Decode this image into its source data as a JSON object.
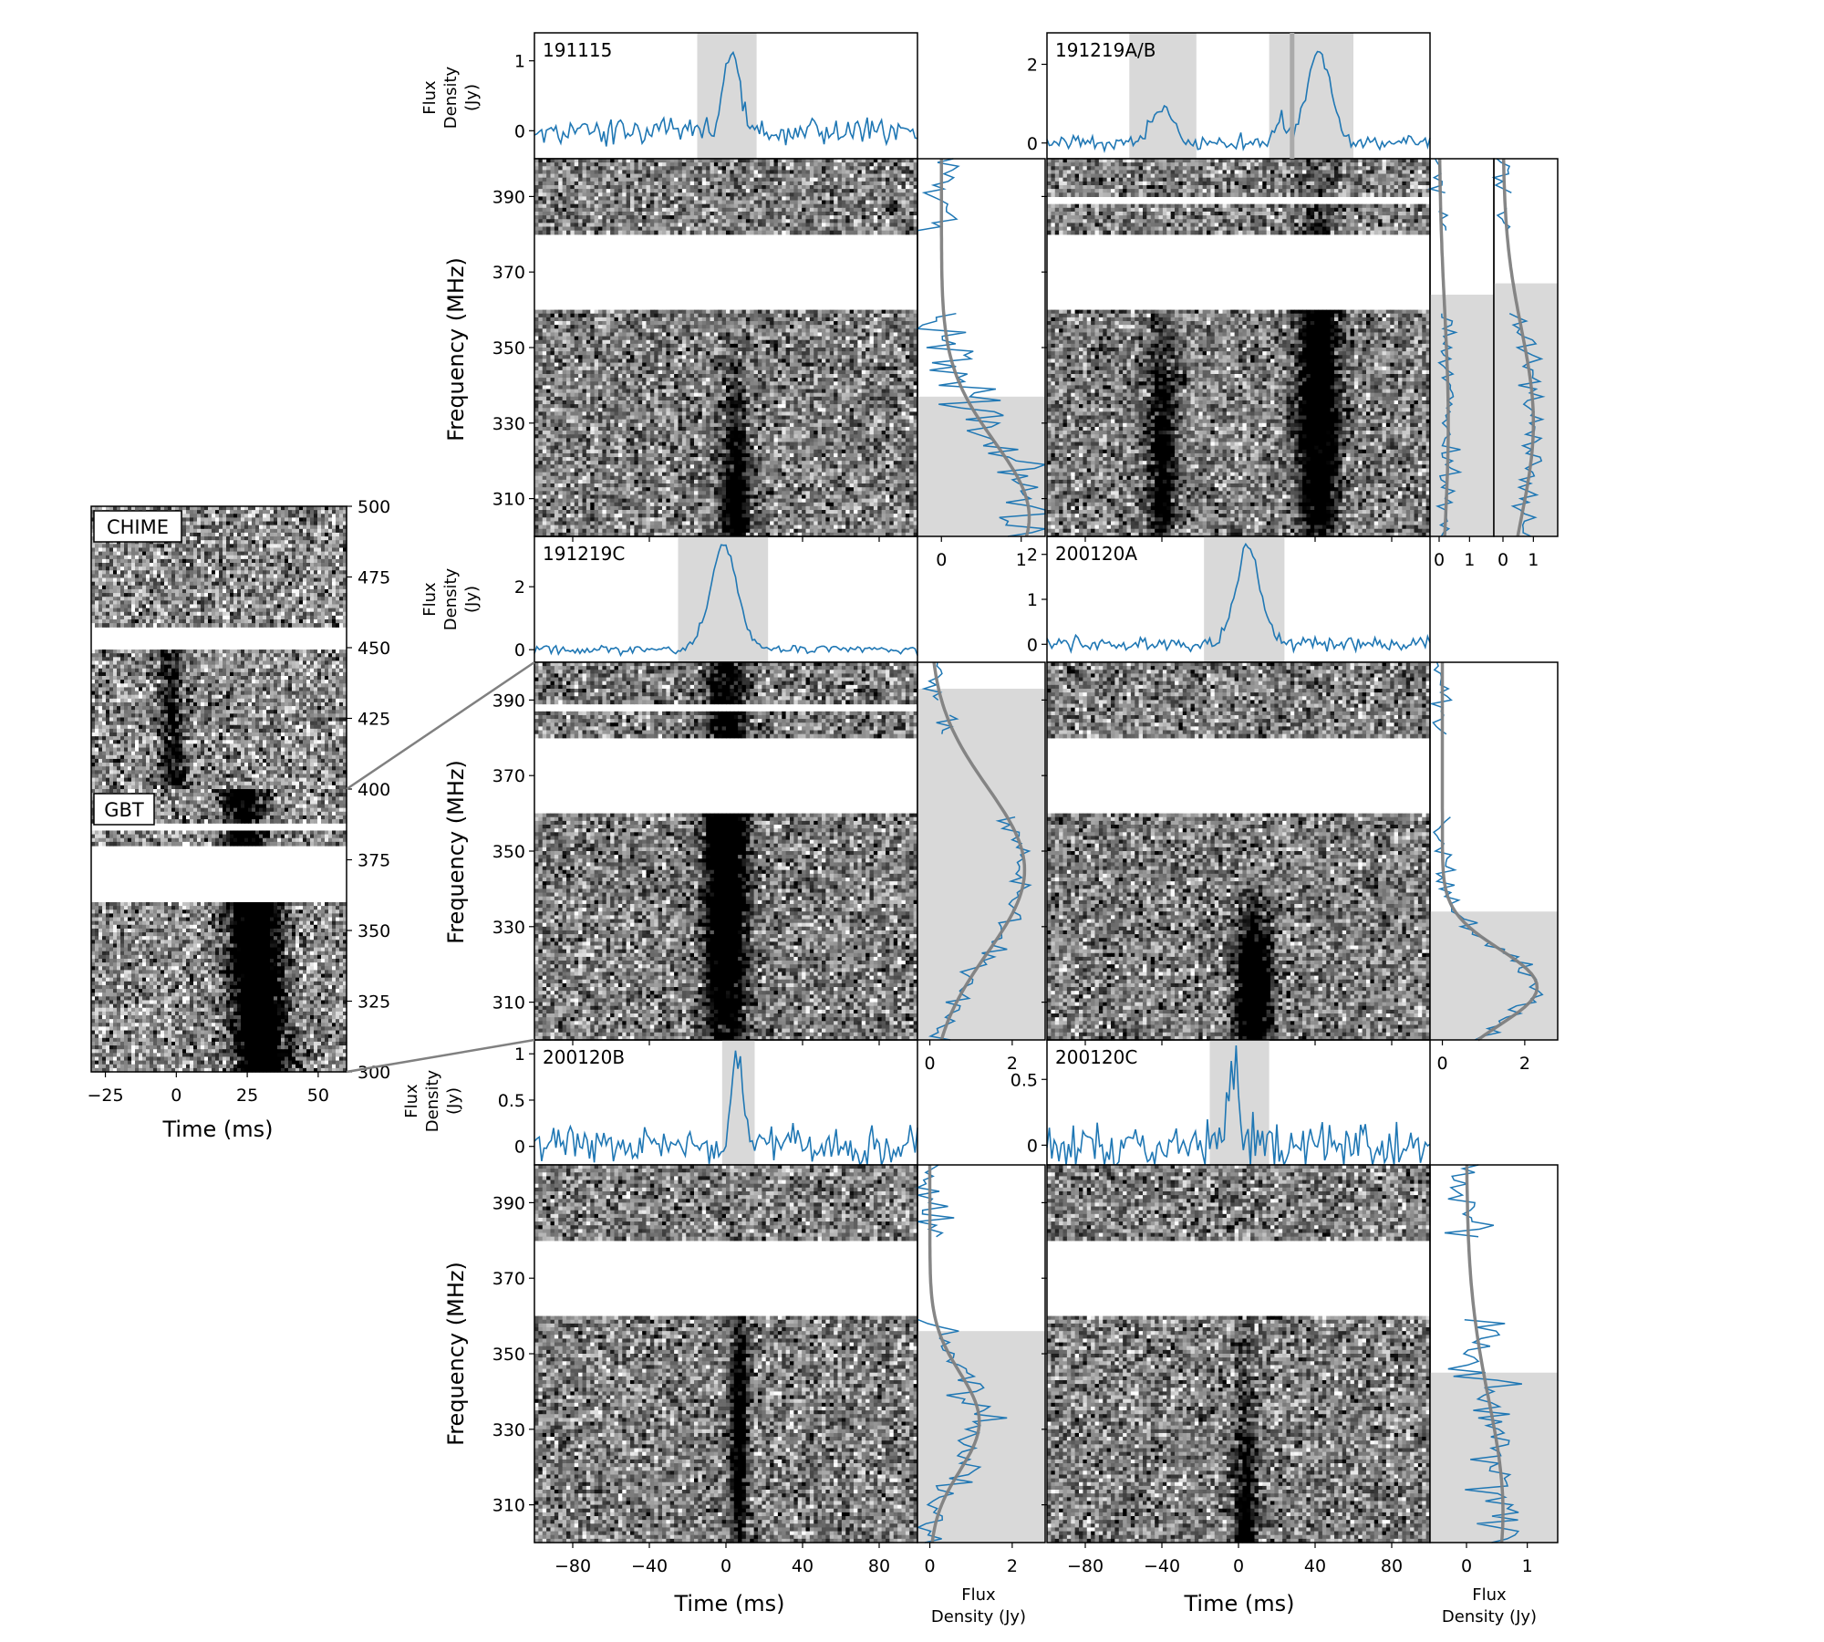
{
  "figure": {
    "time_label": "Time (ms)",
    "freq_label": "Frequency (MHz)",
    "flux_density_label_line1": "Flux",
    "flux_density_label_line2": "Density",
    "flux_unit_label": "(Jy)",
    "flux_density_jy_label": "Density (Jy)"
  },
  "chart_data": [
    {
      "id": "191115",
      "type": "heatmap",
      "label": "191115",
      "time_range_ms": [
        -100,
        100
      ],
      "freq_range_mhz": [
        300,
        400
      ],
      "masked_bands_mhz": [
        [
          360,
          380
        ]
      ],
      "pulse": {
        "center_ms": 5,
        "width_ms": 5,
        "freq_peak_mhz": 305,
        "freq_sigma_mhz": 22,
        "strength": 0.55
      },
      "profile_ylim": [
        -0.4,
        1.4
      ],
      "profile_yticks": [
        0,
        1
      ],
      "profile_peaks": [
        {
          "t_ms": 3,
          "amp": 1.1,
          "w_ms": 4
        }
      ],
      "profile_noise": 0.1,
      "shaded_time_ms": [
        [
          -15,
          16
        ]
      ],
      "spectrum": {
        "xlim": [
          -0.3,
          1.3
        ],
        "xticks": [
          0,
          1
        ],
        "shade_below_mhz": 337,
        "fit_amp": 1.1,
        "fit_center_mhz": 305,
        "fit_sigma_mhz": 20,
        "noise": 0.35
      }
    },
    {
      "id": "191219AB",
      "type": "heatmap",
      "label": "191219A/B",
      "time_range_ms": [
        -100,
        100
      ],
      "freq_range_mhz": [
        300,
        400
      ],
      "masked_bands_mhz": [
        [
          360,
          380
        ],
        [
          388,
          390
        ]
      ],
      "pulse": {
        "center_ms": -40,
        "width_ms": 5,
        "freq_peak_mhz": 320,
        "freq_sigma_mhz": 25,
        "strength": 0.45
      },
      "pulse2": {
        "center_ms": 42,
        "width_ms": 7,
        "freq_peak_mhz": 335,
        "freq_sigma_mhz": 30,
        "strength": 0.75
      },
      "profile_ylim": [
        -0.4,
        2.8
      ],
      "profile_yticks": [
        0,
        2
      ],
      "profile_peaks": [
        {
          "t_ms": -40,
          "amp": 0.95,
          "w_ms": 5
        },
        {
          "t_ms": 42,
          "amp": 2.4,
          "w_ms": 6
        },
        {
          "t_ms": 22,
          "amp": 0.6,
          "w_ms": 3
        }
      ],
      "profile_noise": 0.1,
      "shaded_time_ms": [
        [
          -57,
          -22
        ],
        [
          16,
          60
        ]
      ],
      "spectrum": {
        "xlim": [
          -0.3,
          1.8
        ],
        "xticks": [
          0,
          1
        ],
        "shade_below_mhz": 364,
        "fit_amp": 0.3,
        "fit_center_mhz": 330,
        "fit_sigma_mhz": 30,
        "noise": 0.3
      },
      "spectrum2": {
        "xlim": [
          -0.3,
          1.8
        ],
        "xticks": [
          0,
          1
        ],
        "shade_below_mhz": 367,
        "fit_amp": 1.0,
        "fit_center_mhz": 330,
        "fit_sigma_mhz": 25,
        "noise": 0.35
      }
    },
    {
      "id": "191219C",
      "type": "heatmap",
      "label": "191219C",
      "time_range_ms": [
        -100,
        100
      ],
      "freq_range_mhz": [
        300,
        400
      ],
      "masked_bands_mhz": [
        [
          360,
          380
        ],
        [
          387,
          389
        ]
      ],
      "pulse": {
        "center_ms": 0,
        "width_ms": 7,
        "freq_peak_mhz": 345,
        "freq_sigma_mhz": 40,
        "strength": 0.85
      },
      "profile_ylim": [
        -0.4,
        3.6
      ],
      "profile_yticks": [
        0,
        2
      ],
      "profile_peaks": [
        {
          "t_ms": -1,
          "amp": 3.3,
          "w_ms": 7
        }
      ],
      "profile_noise": 0.08,
      "shaded_time_ms": [
        [
          -25,
          22
        ]
      ],
      "spectrum": {
        "xlim": [
          -0.3,
          2.8
        ],
        "xticks": [
          0,
          2
        ],
        "shade_below_mhz": 393,
        "fit_amp": 2.3,
        "fit_center_mhz": 345,
        "fit_sigma_mhz": 22,
        "noise": 0.3
      }
    },
    {
      "id": "200120A",
      "type": "heatmap",
      "label": "200120A",
      "time_range_ms": [
        -100,
        100
      ],
      "freq_range_mhz": [
        300,
        400
      ],
      "masked_bands_mhz": [
        [
          360,
          380
        ]
      ],
      "pulse": {
        "center_ms": 8,
        "width_ms": 6,
        "freq_peak_mhz": 312,
        "freq_sigma_mhz": 14,
        "strength": 0.85
      },
      "profile_ylim": [
        -0.4,
        2.4
      ],
      "profile_yticks": [
        0,
        1,
        2
      ],
      "profile_peaks": [
        {
          "t_ms": 5,
          "amp": 2.2,
          "w_ms": 6
        }
      ],
      "profile_noise": 0.08,
      "shaded_time_ms": [
        [
          -18,
          24
        ]
      ],
      "spectrum": {
        "xlim": [
          -0.3,
          2.8
        ],
        "xticks": [
          0,
          2
        ],
        "shade_below_mhz": 334,
        "fit_amp": 2.3,
        "fit_center_mhz": 314,
        "fit_sigma_mhz": 10,
        "noise": 0.3
      }
    },
    {
      "id": "200120B",
      "type": "heatmap",
      "label": "200120B",
      "time_range_ms": [
        -100,
        100
      ],
      "freq_range_mhz": [
        300,
        400
      ],
      "masked_bands_mhz": [
        [
          360,
          380
        ]
      ],
      "pulse": {
        "center_ms": 7,
        "width_ms": 3,
        "freq_peak_mhz": 330,
        "freq_sigma_mhz": 25,
        "strength": 0.5
      },
      "profile_ylim": [
        -0.2,
        1.15
      ],
      "profile_yticks": [
        0.0,
        0.5,
        1.0
      ],
      "profile_peaks": [
        {
          "t_ms": 6,
          "amp": 1.05,
          "w_ms": 3
        }
      ],
      "profile_noise": 0.1,
      "shaded_time_ms": [
        [
          -2,
          15
        ]
      ],
      "spectrum": {
        "xlim": [
          -0.3,
          2.8
        ],
        "xticks": [
          0,
          2
        ],
        "shade_below_mhz": 356,
        "fit_amp": 1.2,
        "fit_center_mhz": 332,
        "fit_sigma_mhz": 13,
        "noise": 0.5
      }
    },
    {
      "id": "200120C",
      "type": "heatmap",
      "label": "200120C",
      "time_range_ms": [
        -100,
        100
      ],
      "freq_range_mhz": [
        300,
        400
      ],
      "masked_bands_mhz": [
        [
          360,
          380
        ]
      ],
      "pulse": {
        "center_ms": 4,
        "width_ms": 4,
        "freq_peak_mhz": 305,
        "freq_sigma_mhz": 25,
        "strength": 0.45
      },
      "profile_ylim": [
        -0.15,
        0.8
      ],
      "profile_yticks": [
        0.0,
        0.5
      ],
      "profile_peaks": [
        {
          "t_ms": -3,
          "amp": 0.7,
          "w_ms": 3
        }
      ],
      "profile_noise": 0.1,
      "shaded_time_ms": [
        [
          -15,
          16
        ]
      ],
      "spectrum": {
        "xlim": [
          -0.6,
          1.5
        ],
        "xticks": [
          0,
          1
        ],
        "shade_below_mhz": 345,
        "fit_amp": 0.6,
        "fit_center_mhz": 308,
        "fit_sigma_mhz": 30,
        "noise": 0.35
      }
    },
    {
      "id": "191219C_wideband",
      "type": "heatmap",
      "time_range_ms": [
        -30,
        60
      ],
      "freq_range_mhz": [
        300,
        500
      ],
      "yticks": [
        300,
        325,
        350,
        375,
        400,
        425,
        450,
        475,
        500
      ],
      "xticks": [
        -25,
        0,
        25,
        50
      ],
      "masked_bands_mhz": [
        [
          360,
          380
        ],
        [
          450,
          457
        ],
        [
          386,
          388
        ]
      ],
      "instrument_labels": [
        "CHIME",
        "GBT"
      ],
      "pulse_segments": [
        {
          "freq_range_mhz": [
            400,
            450
          ],
          "center_ms": -3,
          "width_ms": 3,
          "strength": 0.35
        },
        {
          "freq_range_mhz": [
            300,
            360
          ],
          "center_ms": 27,
          "width_ms": 6,
          "strength": 0.85
        },
        {
          "freq_range_mhz": [
            380,
            400
          ],
          "center_ms": 23,
          "width_ms": 5,
          "strength": 0.55
        }
      ]
    }
  ]
}
